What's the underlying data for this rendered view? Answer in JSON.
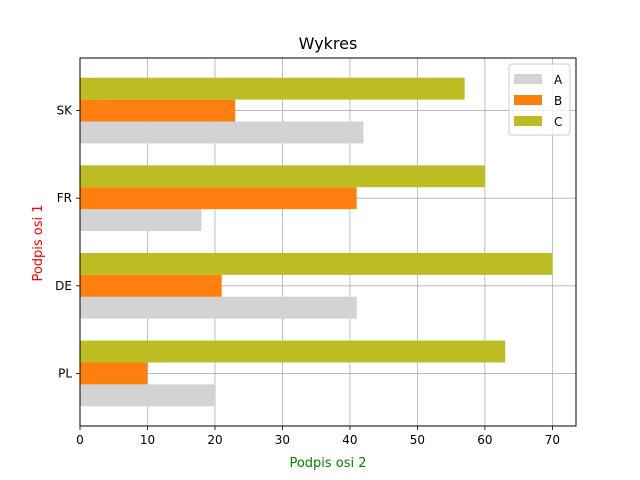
{
  "chart_data": {
    "type": "bar",
    "orientation": "horizontal",
    "title": "Wykres",
    "xlabel": "Podpis osi 2",
    "ylabel": "Podpis osi 1",
    "xlabel_color": "#008000",
    "ylabel_color": "#ff0000",
    "categories": [
      "PL",
      "DE",
      "FR",
      "SK"
    ],
    "xlim": [
      0,
      73.5
    ],
    "xticks": [
      0,
      10,
      20,
      30,
      40,
      50,
      60,
      70
    ],
    "grid": true,
    "legend_position": "top-right",
    "series": [
      {
        "name": "A",
        "color": "#d3d3d3",
        "values": [
          20,
          41,
          18,
          42
        ]
      },
      {
        "name": "B",
        "color": "#ff7f0e",
        "values": [
          10,
          21,
          41,
          23
        ]
      },
      {
        "name": "C",
        "color": "#bcbd22",
        "values": [
          63,
          70,
          60,
          57
        ]
      }
    ]
  }
}
